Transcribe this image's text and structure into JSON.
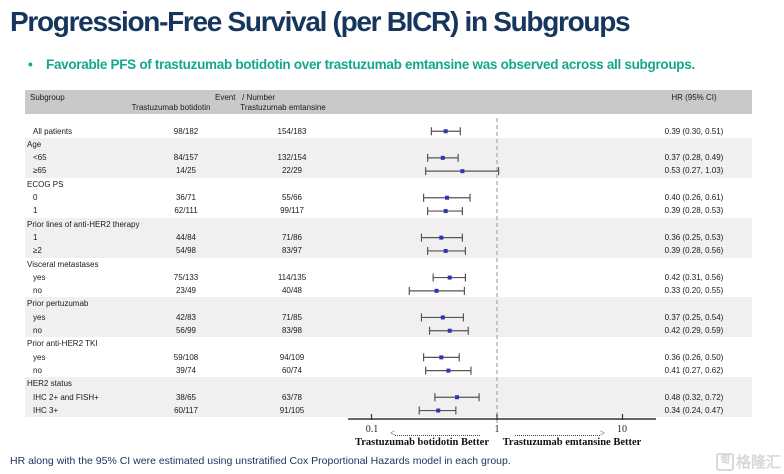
{
  "slide": {
    "title": "Progression-Free Survival (per BICR) in Subgroups",
    "bullet_marker": "•",
    "bullet": "Favorable PFS of trastuzumab botidotin over trastuzumab emtansine was observed across all subgroups.",
    "footnote": "HR along with the 95% CI were estimated using unstratified Cox Proportional Hazards model in each group.",
    "watermark_icon": "匒",
    "watermark": "格隆汇"
  },
  "colors": {
    "title_navy": "#17365D",
    "accent_teal": "#13A88A",
    "header_band_gray": "#C9C9C9",
    "shaded_row_gray": "#F0F0F0",
    "marker_blue": "#2B35B5",
    "ci_line_gray": "#555555",
    "ref_line_gray": "#A6A6A6",
    "axis_black": "#333333"
  },
  "table_headers": {
    "subgroup": "Subgroup",
    "event_number": "Event   / Number",
    "arm1": "Trastuzumab botidotin",
    "arm2": "Trastuzumab emtansine",
    "hr": "HR (95% CI)"
  },
  "chart_data": {
    "type": "forest",
    "x_scale": "log10",
    "x_ticks": [
      0.1,
      1,
      10
    ],
    "x_tick_labels": [
      "0.1",
      "1",
      "10"
    ],
    "x_range": [
      0.1,
      10
    ],
    "reference_line": 1,
    "left_direction_label": "Trastuzumab botidotin Better",
    "right_direction_label": "Trastuzumab emtansine Better",
    "rows": [
      {
        "label": "All patients",
        "section": false,
        "shaded": false,
        "arm1": "98/182",
        "arm2": "154/183",
        "hr": 0.39,
        "lo": 0.3,
        "hi": 0.51,
        "hr_text": "0.39 (0.30, 0.51)"
      },
      {
        "label": "Age",
        "section": true,
        "shaded": true
      },
      {
        "label": "<65",
        "section": false,
        "shaded": true,
        "arm1": "84/157",
        "arm2": "132/154",
        "hr": 0.37,
        "lo": 0.28,
        "hi": 0.49,
        "hr_text": "0.37 (0.28, 0.49)"
      },
      {
        "label": "≥65",
        "section": false,
        "shaded": true,
        "arm1": "14/25",
        "arm2": "22/29",
        "hr": 0.53,
        "lo": 0.27,
        "hi": 1.03,
        "hr_text": "0.53 (0.27, 1.03)"
      },
      {
        "label": "ECOG PS",
        "section": true,
        "shaded": false
      },
      {
        "label": "0",
        "section": false,
        "shaded": false,
        "arm1": "36/71",
        "arm2": "55/66",
        "hr": 0.4,
        "lo": 0.26,
        "hi": 0.61,
        "hr_text": "0.40 (0.26, 0.61)"
      },
      {
        "label": "1",
        "section": false,
        "shaded": false,
        "arm1": "62/111",
        "arm2": "99/117",
        "hr": 0.39,
        "lo": 0.28,
        "hi": 0.53,
        "hr_text": "0.39 (0.28, 0.53)"
      },
      {
        "label": "Prior lines of anti-HER2 therapy",
        "section": true,
        "shaded": true
      },
      {
        "label": "1",
        "section": false,
        "shaded": true,
        "arm1": "44/84",
        "arm2": "71/86",
        "hr": 0.36,
        "lo": 0.25,
        "hi": 0.53,
        "hr_text": "0.36 (0.25, 0.53)"
      },
      {
        "label": "≥2",
        "section": false,
        "shaded": true,
        "arm1": "54/98",
        "arm2": "83/97",
        "hr": 0.39,
        "lo": 0.28,
        "hi": 0.56,
        "hr_text": "0.39 (0.28, 0.56)"
      },
      {
        "label": "Visceral metastases",
        "section": true,
        "shaded": false
      },
      {
        "label": "yes",
        "section": false,
        "shaded": false,
        "arm1": "75/133",
        "arm2": "114/135",
        "hr": 0.42,
        "lo": 0.31,
        "hi": 0.56,
        "hr_text": "0.42 (0.31, 0.56)"
      },
      {
        "label": "no",
        "section": false,
        "shaded": false,
        "arm1": "23/49",
        "arm2": "40/48",
        "hr": 0.33,
        "lo": 0.2,
        "hi": 0.55,
        "hr_text": "0.33 (0.20, 0.55)"
      },
      {
        "label": "Prior pertuzumab",
        "section": true,
        "shaded": true
      },
      {
        "label": "yes",
        "section": false,
        "shaded": true,
        "arm1": "42/83",
        "arm2": "71/85",
        "hr": 0.37,
        "lo": 0.25,
        "hi": 0.54,
        "hr_text": "0.37 (0.25, 0.54)"
      },
      {
        "label": "no",
        "section": false,
        "shaded": true,
        "arm1": "56/99",
        "arm2": "83/98",
        "hr": 0.42,
        "lo": 0.29,
        "hi": 0.59,
        "hr_text": "0.42 (0.29, 0.59)"
      },
      {
        "label": "Prior anti-HER2 TKI",
        "section": true,
        "shaded": false
      },
      {
        "label": "yes",
        "section": false,
        "shaded": false,
        "arm1": "59/108",
        "arm2": "94/109",
        "hr": 0.36,
        "lo": 0.26,
        "hi": 0.5,
        "hr_text": "0.36 (0.26, 0.50)"
      },
      {
        "label": "no",
        "section": false,
        "shaded": false,
        "arm1": "39/74",
        "arm2": "60/74",
        "hr": 0.41,
        "lo": 0.27,
        "hi": 0.62,
        "hr_text": "0.41 (0.27, 0.62)"
      },
      {
        "label": "HER2 status",
        "section": true,
        "shaded": true
      },
      {
        "label": "IHC 2+ and FISH+",
        "section": false,
        "shaded": true,
        "arm1": "38/65",
        "arm2": "63/78",
        "hr": 0.48,
        "lo": 0.32,
        "hi": 0.72,
        "hr_text": "0.48 (0.32, 0.72)"
      },
      {
        "label": "IHC 3+",
        "section": false,
        "shaded": true,
        "arm1": "60/117",
        "arm2": "91/105",
        "hr": 0.34,
        "lo": 0.24,
        "hi": 0.47,
        "hr_text": "0.34 (0.24, 0.47)"
      }
    ]
  }
}
